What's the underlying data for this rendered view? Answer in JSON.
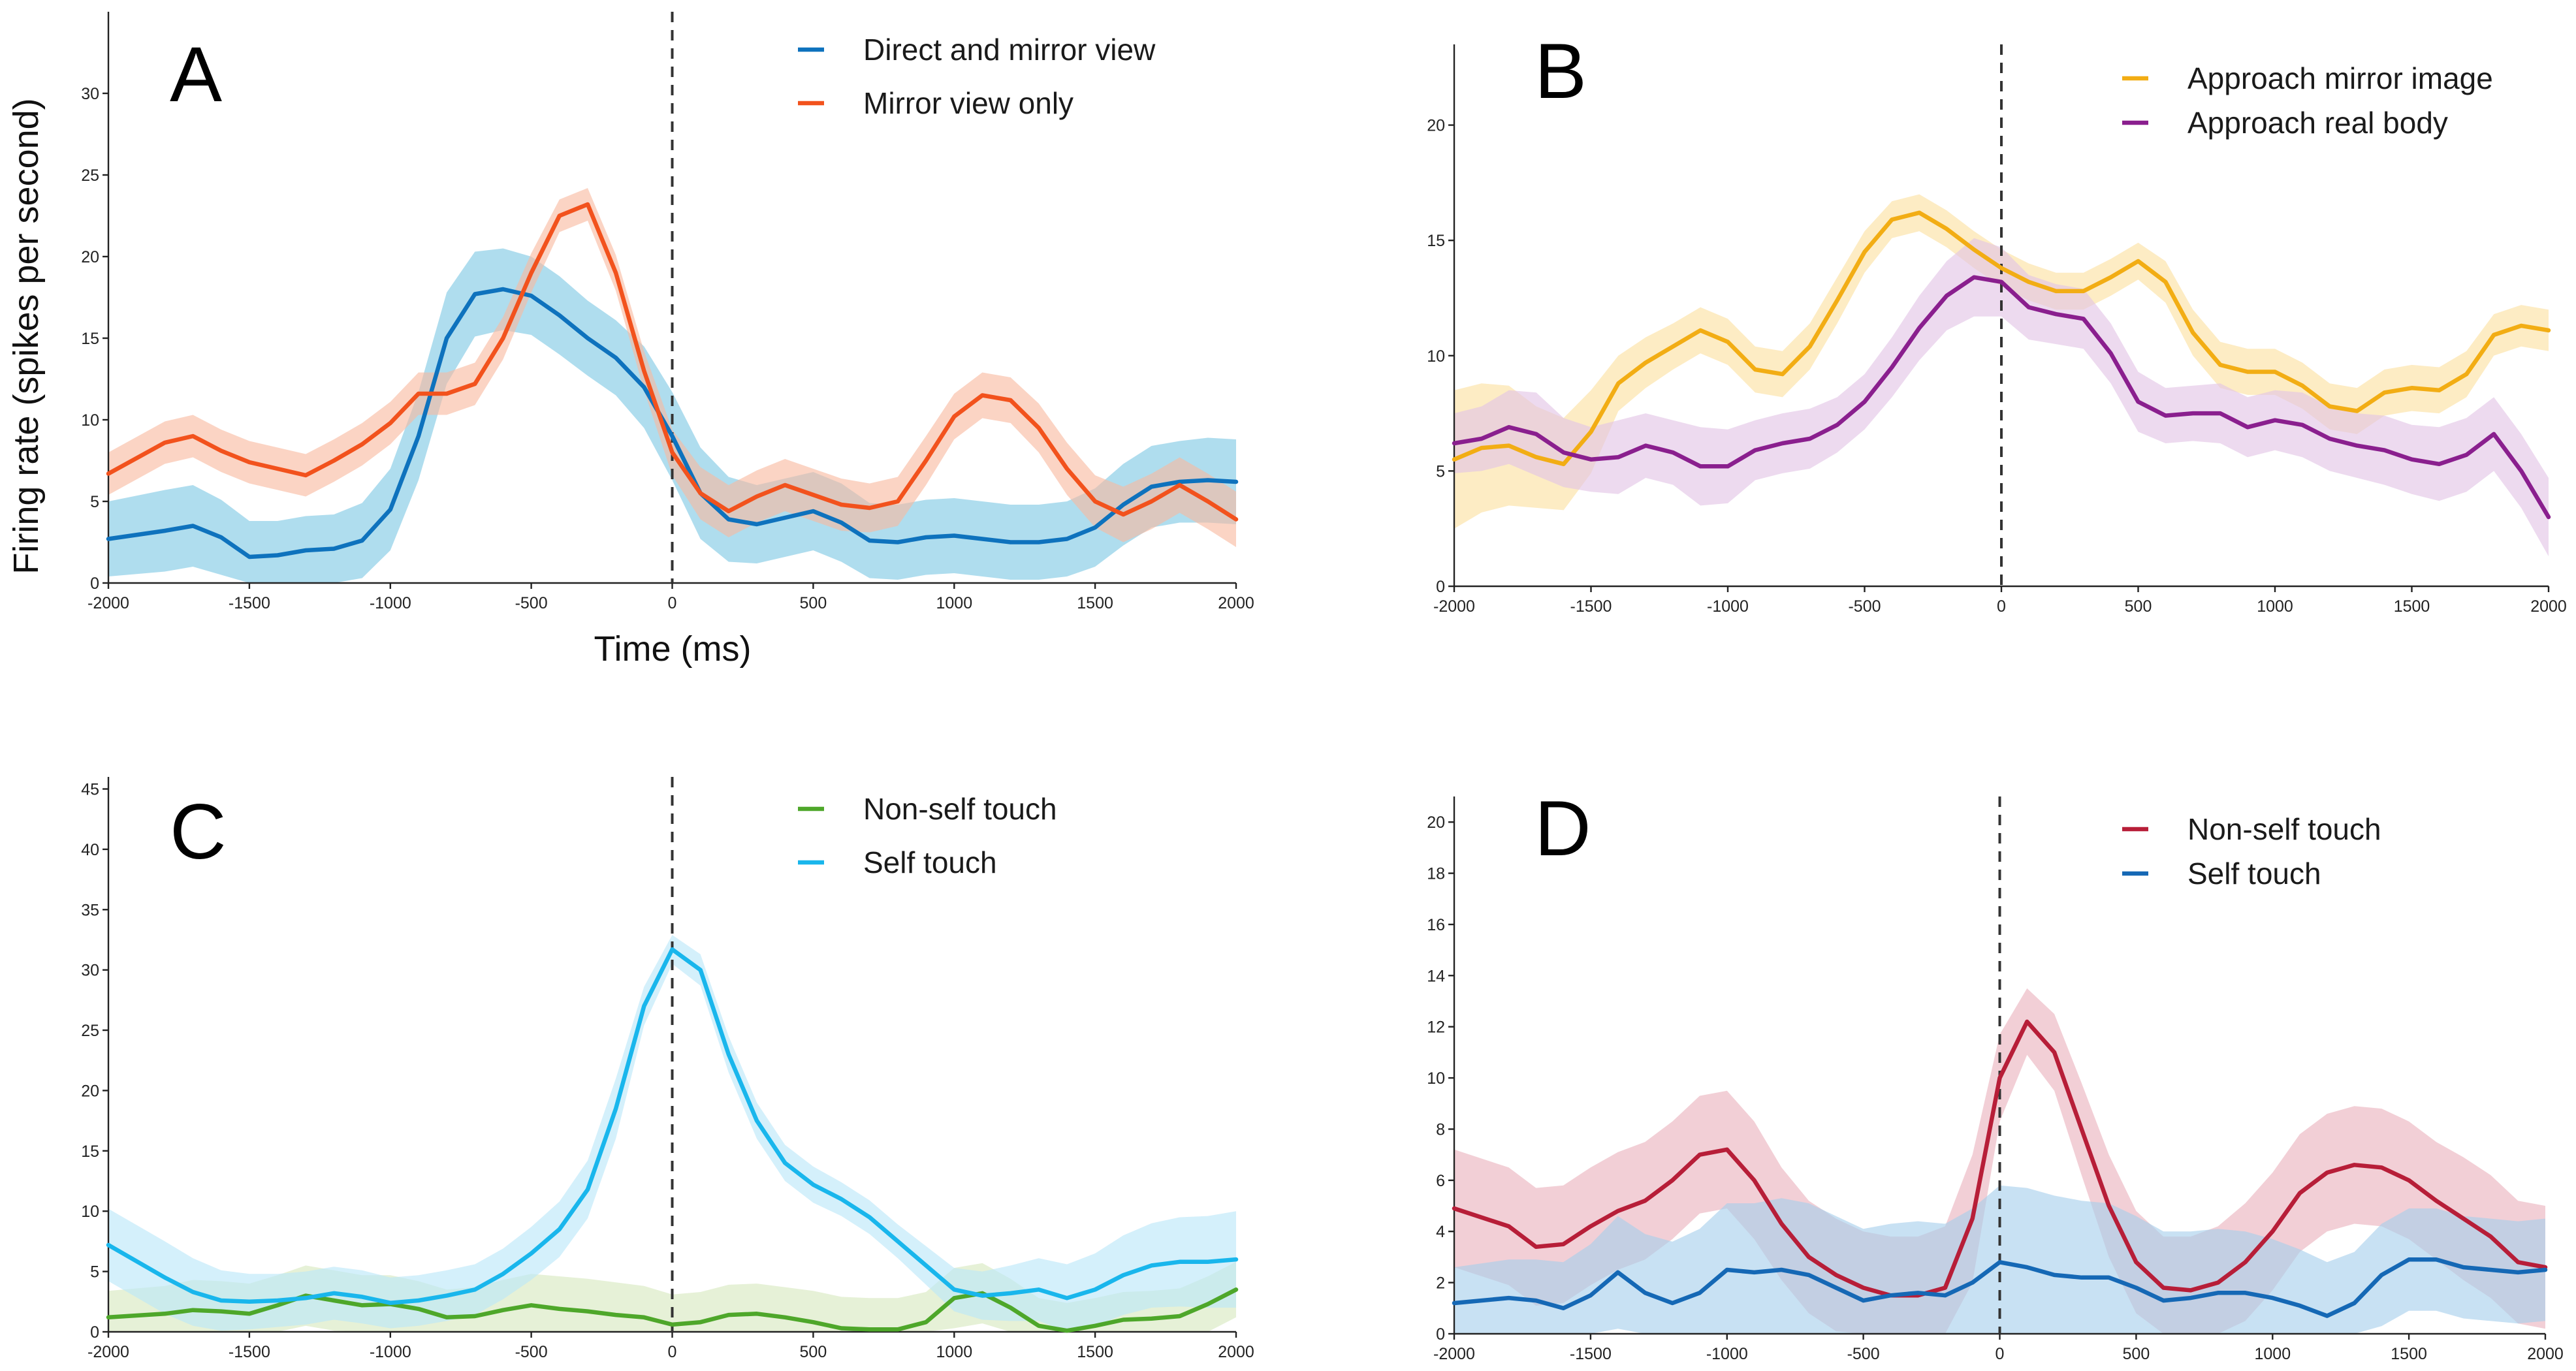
{
  "figure": {
    "y_axis_title": "Firing rate (spikes per second)",
    "x_axis_title": "Time (ms)"
  },
  "chart_data": [
    {
      "panel": "A",
      "type": "line",
      "title": "A",
      "xlabel": "Time (ms)",
      "ylabel": "Firing rate (spikes per second)",
      "xlim": [
        -2000,
        2000
      ],
      "ylim": [
        0,
        35
      ],
      "xticks": [
        -2000,
        -1500,
        -1000,
        -500,
        0,
        500,
        1000,
        1500,
        2000
      ],
      "xtick_labels": [
        "-2000",
        "-1500",
        "-1000",
        "-500",
        "0",
        "500",
        "1000",
        "1500",
        "2000"
      ],
      "yticks": [
        0,
        5,
        10,
        15,
        20,
        25,
        30
      ],
      "ytick_labels": [
        "0",
        "5",
        "10",
        "15",
        "20",
        "25",
        "30"
      ],
      "marker_at": 0,
      "legend_position": "top-right",
      "x": [
        -2000,
        -1800,
        -1700,
        -1600,
        -1500,
        -1400,
        -1300,
        -1200,
        -1100,
        -1000,
        -900,
        -800,
        -700,
        -600,
        -500,
        -400,
        -300,
        -200,
        -100,
        0,
        100,
        200,
        300,
        400,
        500,
        600,
        700,
        800,
        900,
        1000,
        1100,
        1200,
        1300,
        1400,
        1500,
        1600,
        1700,
        1800,
        1900,
        2000
      ],
      "series": [
        {
          "name": "Direct and mirror view",
          "color": "#0e72bd",
          "band_color": "#7ec8e3",
          "values": [
            2.7,
            3.2,
            3.5,
            2.8,
            1.6,
            1.7,
            2.0,
            2.1,
            2.6,
            4.5,
            9.0,
            15.0,
            17.7,
            18.0,
            17.6,
            16.4,
            15.0,
            13.8,
            12.0,
            9.0,
            5.5,
            3.9,
            3.6,
            4.0,
            4.4,
            3.7,
            2.6,
            2.5,
            2.8,
            2.9,
            2.7,
            2.5,
            2.5,
            2.7,
            3.4,
            4.8,
            5.9,
            6.2,
            6.3,
            6.2
          ],
          "err": [
            2.3,
            2.5,
            2.5,
            2.3,
            2.2,
            2.1,
            2.1,
            2.1,
            2.3,
            2.5,
            2.7,
            2.8,
            2.6,
            2.5,
            2.4,
            2.4,
            2.3,
            2.3,
            2.5,
            2.7,
            2.8,
            2.6,
            2.4,
            2.4,
            2.4,
            2.4,
            2.3,
            2.3,
            2.3,
            2.3,
            2.3,
            2.3,
            2.3,
            2.3,
            2.4,
            2.5,
            2.5,
            2.5,
            2.6,
            2.6
          ]
        },
        {
          "name": "Mirror view only",
          "color": "#f2521d",
          "band_color": "#f8b9a0",
          "values": [
            6.7,
            8.6,
            9.0,
            8.1,
            7.4,
            7.0,
            6.6,
            7.5,
            8.5,
            9.8,
            11.6,
            11.6,
            12.2,
            15.0,
            19.0,
            22.5,
            23.2,
            19.0,
            13.0,
            8.0,
            5.5,
            4.4,
            5.3,
            6.0,
            5.4,
            4.8,
            4.6,
            5.0,
            7.5,
            10.2,
            11.5,
            11.2,
            9.5,
            7.0,
            5.0,
            4.2,
            5.0,
            6.0,
            5.0,
            3.9
          ],
          "err": [
            1.3,
            1.3,
            1.3,
            1.3,
            1.3,
            1.3,
            1.3,
            1.3,
            1.3,
            1.3,
            1.3,
            1.3,
            1.3,
            1.3,
            1.2,
            1.0,
            1.0,
            1.1,
            1.2,
            1.4,
            1.6,
            1.6,
            1.6,
            1.6,
            1.6,
            1.6,
            1.5,
            1.5,
            1.5,
            1.4,
            1.4,
            1.4,
            1.5,
            1.6,
            1.6,
            1.7,
            1.7,
            1.7,
            1.7,
            1.7
          ]
        }
      ]
    },
    {
      "panel": "B",
      "type": "line",
      "title": "B",
      "xlim": [
        -2000,
        2000
      ],
      "ylim": [
        0,
        23.5
      ],
      "xticks": [
        -2000,
        -1500,
        -1000,
        -500,
        0,
        500,
        1000,
        1500,
        2000
      ],
      "xtick_labels": [
        "-2000",
        "-1500",
        "-1000",
        "-500",
        "0",
        "500",
        "1000",
        "1500",
        "2000"
      ],
      "yticks": [
        0,
        5,
        10,
        15,
        20
      ],
      "ytick_labels": [
        "0",
        "5",
        "10",
        "15",
        "20"
      ],
      "marker_at": 0,
      "legend_position": "top-right",
      "x": [
        -2000,
        -1900,
        -1800,
        -1700,
        -1600,
        -1500,
        -1400,
        -1300,
        -1200,
        -1100,
        -1000,
        -900,
        -800,
        -700,
        -600,
        -500,
        -400,
        -300,
        -200,
        -100,
        0,
        100,
        200,
        300,
        400,
        500,
        600,
        700,
        800,
        900,
        1000,
        1100,
        1200,
        1300,
        1400,
        1500,
        1600,
        1700,
        1800,
        1900,
        2000
      ],
      "series": [
        {
          "name": "Approach mirror image",
          "color": "#f2ad14",
          "band_color": "#fbe0a0",
          "values": [
            5.5,
            6.0,
            6.1,
            5.6,
            5.3,
            6.7,
            8.8,
            9.7,
            10.4,
            11.1,
            10.6,
            9.4,
            9.2,
            10.4,
            12.4,
            14.5,
            15.9,
            16.2,
            15.5,
            14.6,
            13.8,
            13.2,
            12.8,
            12.8,
            13.4,
            14.1,
            13.2,
            11.0,
            9.6,
            9.3,
            9.3,
            8.7,
            7.8,
            7.6,
            8.4,
            8.6,
            8.5,
            9.2,
            10.9,
            11.3,
            11.1
          ],
          "err": [
            3.0,
            2.8,
            2.6,
            2.2,
            2.0,
            1.8,
            1.2,
            1.1,
            1.0,
            1.0,
            1.0,
            1.0,
            1.0,
            1.0,
            1.0,
            0.9,
            0.8,
            0.8,
            0.8,
            0.8,
            0.8,
            0.8,
            0.8,
            0.8,
            0.8,
            0.8,
            0.9,
            1.0,
            1.0,
            1.0,
            1.0,
            1.0,
            1.0,
            1.0,
            1.0,
            1.0,
            1.0,
            1.0,
            0.9,
            0.9,
            0.9
          ]
        },
        {
          "name": "Approach real body",
          "color": "#8a1f8e",
          "band_color": "#e2c3e5",
          "values": [
            6.2,
            6.4,
            6.9,
            6.6,
            5.8,
            5.5,
            5.6,
            6.1,
            5.8,
            5.2,
            5.2,
            5.9,
            6.2,
            6.4,
            7.0,
            8.0,
            9.5,
            11.2,
            12.6,
            13.4,
            13.2,
            12.1,
            11.8,
            11.6,
            10.1,
            8.0,
            7.4,
            7.5,
            7.5,
            6.9,
            7.2,
            7.0,
            6.4,
            6.1,
            5.9,
            5.5,
            5.3,
            5.7,
            6.6,
            5.0,
            3.0
          ],
          "err": [
            1.3,
            1.4,
            1.6,
            1.8,
            1.5,
            1.4,
            1.6,
            1.4,
            1.4,
            1.7,
            1.6,
            1.3,
            1.3,
            1.3,
            1.2,
            1.2,
            1.3,
            1.4,
            1.5,
            1.7,
            1.5,
            1.4,
            1.3,
            1.3,
            1.3,
            1.3,
            1.2,
            1.2,
            1.3,
            1.3,
            1.3,
            1.4,
            1.4,
            1.4,
            1.5,
            1.5,
            1.6,
            1.6,
            1.6,
            1.6,
            1.7
          ]
        }
      ]
    },
    {
      "panel": "C",
      "type": "line",
      "title": "C",
      "xlim": [
        -2000,
        2000
      ],
      "ylim": [
        0,
        46
      ],
      "xticks": [
        -2000,
        -1500,
        -1000,
        -500,
        0,
        500,
        1000,
        1500,
        2000
      ],
      "xtick_labels": [
        "-2000",
        "-1500",
        "-1000",
        "-500",
        "0",
        "500",
        "1000",
        "1500",
        "2000"
      ],
      "yticks": [
        0,
        5,
        10,
        15,
        20,
        25,
        30,
        35,
        40,
        45
      ],
      "ytick_labels": [
        "0",
        "5",
        "10",
        "15",
        "20",
        "25",
        "30",
        "35",
        "40",
        "45"
      ],
      "marker_at": 0,
      "legend_position": "top-right",
      "x": [
        -2000,
        -1800,
        -1700,
        -1600,
        -1500,
        -1400,
        -1300,
        -1200,
        -1100,
        -1000,
        -900,
        -800,
        -700,
        -600,
        -500,
        -400,
        -300,
        -200,
        -100,
        0,
        100,
        200,
        300,
        400,
        500,
        600,
        700,
        800,
        900,
        1000,
        1100,
        1200,
        1300,
        1400,
        1500,
        1600,
        1700,
        1800,
        1900,
        2000
      ],
      "series": [
        {
          "name": "Non-self touch",
          "color": "#4ea72a",
          "band_color": "#d7e8be",
          "values": [
            1.2,
            1.5,
            1.8,
            1.7,
            1.5,
            2.2,
            3.0,
            2.6,
            2.2,
            2.3,
            1.9,
            1.2,
            1.3,
            1.8,
            2.2,
            1.9,
            1.7,
            1.4,
            1.2,
            0.6,
            0.8,
            1.4,
            1.5,
            1.2,
            0.8,
            0.3,
            0.2,
            0.2,
            0.8,
            2.8,
            3.2,
            2.0,
            0.5,
            0.1,
            0.5,
            1.0,
            1.1,
            1.3,
            2.3,
            3.5
          ],
          "err": [
            2.2,
            2.3,
            2.5,
            2.5,
            2.5,
            2.5,
            2.5,
            2.5,
            2.5,
            2.4,
            2.3,
            2.3,
            2.4,
            2.5,
            2.6,
            2.7,
            2.7,
            2.7,
            2.6,
            2.5,
            2.5,
            2.5,
            2.5,
            2.5,
            2.6,
            2.6,
            2.6,
            2.6,
            2.5,
            2.5,
            2.5,
            2.4,
            2.3,
            2.3,
            2.3,
            2.3,
            2.3,
            2.3,
            2.3,
            2.3
          ]
        },
        {
          "name": "Self touch",
          "color": "#19b6ec",
          "band_color": "#b9e7f8",
          "values": [
            7.2,
            4.5,
            3.3,
            2.6,
            2.5,
            2.6,
            2.8,
            3.2,
            2.9,
            2.4,
            2.6,
            3.0,
            3.5,
            4.8,
            6.5,
            8.5,
            11.8,
            18.5,
            27.0,
            31.7,
            30.0,
            23.0,
            17.5,
            14.0,
            12.2,
            11.0,
            9.5,
            7.5,
            5.5,
            3.5,
            3.0,
            3.2,
            3.5,
            2.8,
            3.5,
            4.7,
            5.5,
            5.8,
            5.8,
            6.0
          ],
          "err": [
            3.0,
            3.0,
            2.8,
            2.5,
            2.3,
            2.2,
            2.2,
            2.2,
            2.2,
            2.1,
            2.1,
            2.1,
            2.1,
            2.1,
            2.2,
            2.3,
            2.4,
            2.5,
            1.6,
            1.2,
            1.3,
            1.5,
            1.5,
            1.5,
            1.5,
            1.4,
            1.4,
            1.4,
            1.6,
            1.8,
            2.0,
            2.3,
            2.6,
            2.8,
            3.0,
            3.3,
            3.5,
            3.7,
            3.8,
            4.0
          ]
        }
      ]
    },
    {
      "panel": "D",
      "type": "line",
      "title": "D",
      "xlim": [
        -2000,
        2000
      ],
      "ylim": [
        0,
        21
      ],
      "xticks": [
        -2000,
        -1500,
        -1000,
        -500,
        0,
        500,
        1000,
        1500,
        2000
      ],
      "xtick_labels": [
        "-2000",
        "-1500",
        "-1000",
        "-500",
        "0",
        "500",
        "1000",
        "1500",
        "2000"
      ],
      "yticks": [
        0,
        2,
        4,
        6,
        8,
        10,
        12,
        14,
        16,
        18,
        20
      ],
      "ytick_labels": [
        "0",
        "2",
        "4",
        "6",
        "8",
        "10",
        "12",
        "14",
        "16",
        "18",
        "20"
      ],
      "marker_at": 0,
      "legend_position": "top-right",
      "x": [
        -2000,
        -1800,
        -1700,
        -1600,
        -1500,
        -1400,
        -1300,
        -1200,
        -1100,
        -1000,
        -900,
        -800,
        -700,
        -600,
        -500,
        -400,
        -300,
        -200,
        -100,
        0,
        100,
        200,
        300,
        400,
        500,
        600,
        700,
        800,
        900,
        1000,
        1100,
        1200,
        1300,
        1400,
        1500,
        1600,
        1700,
        1800,
        1900,
        2000
      ],
      "series": [
        {
          "name": "Non-self touch",
          "color": "#b71e38",
          "band_color": "#eab2bd",
          "values": [
            4.9,
            4.2,
            3.4,
            3.5,
            4.2,
            4.8,
            5.2,
            6.0,
            7.0,
            7.2,
            6.0,
            4.3,
            3.0,
            2.3,
            1.8,
            1.5,
            1.5,
            1.8,
            4.5,
            10.0,
            12.2,
            11.0,
            8.0,
            5.0,
            2.8,
            1.8,
            1.7,
            2.0,
            2.8,
            4.0,
            5.5,
            6.3,
            6.6,
            6.5,
            6.0,
            5.2,
            4.5,
            3.8,
            2.8,
            2.6
          ],
          "err": [
            2.3,
            2.3,
            2.3,
            2.3,
            2.3,
            2.3,
            2.3,
            2.3,
            2.3,
            2.3,
            2.3,
            2.2,
            2.2,
            2.2,
            2.2,
            2.3,
            2.3,
            2.4,
            2.5,
            1.7,
            1.3,
            1.5,
            1.8,
            2.0,
            2.0,
            2.0,
            2.1,
            2.2,
            2.3,
            2.3,
            2.3,
            2.3,
            2.3,
            2.3,
            2.3,
            2.3,
            2.4,
            2.4,
            2.4,
            2.4
          ]
        },
        {
          "name": "Self touch",
          "color": "#1568b5",
          "band_color": "#a6cfeb",
          "values": [
            1.2,
            1.4,
            1.3,
            1.0,
            1.5,
            2.4,
            1.6,
            1.2,
            1.6,
            2.5,
            2.4,
            2.5,
            2.3,
            1.8,
            1.3,
            1.5,
            1.6,
            1.5,
            2.0,
            2.8,
            2.6,
            2.3,
            2.2,
            2.2,
            1.8,
            1.3,
            1.4,
            1.6,
            1.6,
            1.4,
            1.1,
            0.7,
            1.2,
            2.3,
            2.9,
            2.9,
            2.6,
            2.5,
            2.4,
            2.5
          ],
          "err": [
            1.4,
            1.5,
            1.6,
            1.8,
            2.0,
            2.2,
            2.3,
            2.4,
            2.5,
            2.6,
            2.7,
            2.8,
            2.8,
            2.8,
            2.8,
            2.8,
            2.8,
            2.8,
            2.9,
            3.0,
            3.1,
            3.1,
            3.0,
            2.9,
            2.8,
            2.7,
            2.6,
            2.5,
            2.4,
            2.3,
            2.2,
            2.1,
            2.0,
            2.0,
            2.0,
            2.0,
            2.0,
            2.0,
            2.0,
            2.0
          ]
        }
      ]
    }
  ]
}
